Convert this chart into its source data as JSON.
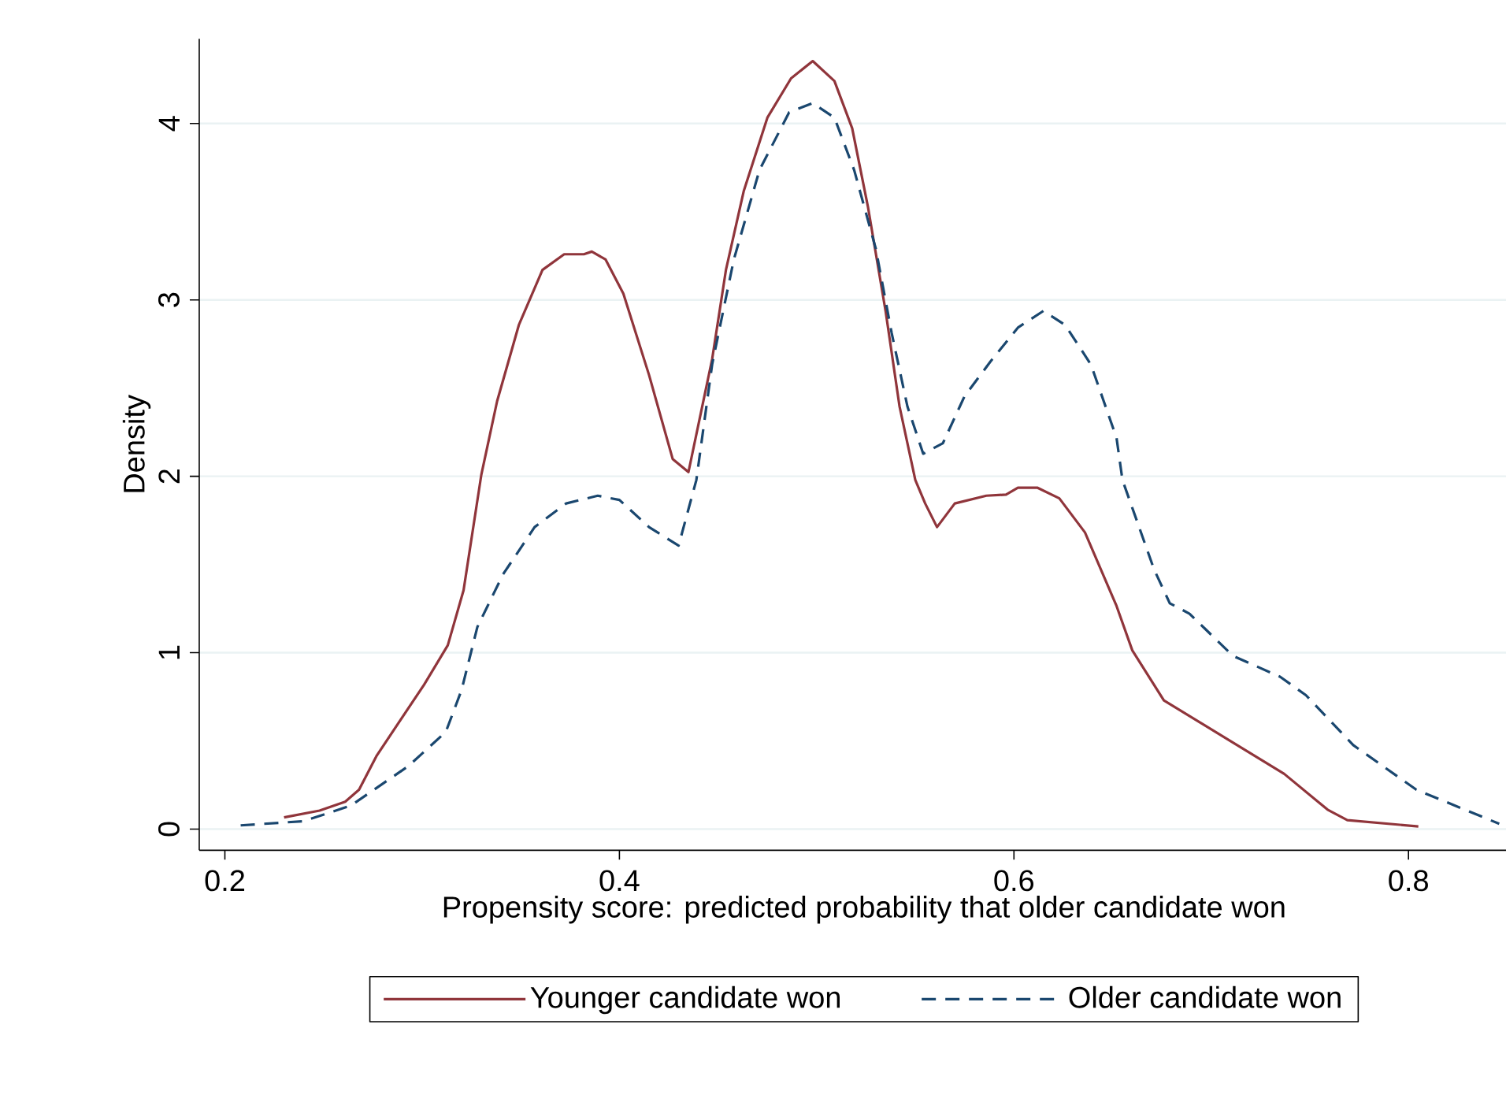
{
  "chart_data": {
    "type": "line",
    "xlabel": "Propensity score: predicted probability that older candidate won",
    "ylabel": "Density",
    "xlim": [
      0.187,
      0.861
    ],
    "ylim": [
      -0.12,
      4.48
    ],
    "xticks": [
      0.2,
      0.4,
      0.6,
      0.8
    ],
    "yticks": [
      0,
      1,
      2,
      3,
      4
    ],
    "grid": "y",
    "legend": "bottom",
    "marker": "none",
    "series": [
      {
        "name": "Younger candidate won",
        "color": "#90353b",
        "line_style": "solid",
        "x": [
          0.23,
          0.248,
          0.261,
          0.268,
          0.277,
          0.301,
          0.313,
          0.321,
          0.33,
          0.338,
          0.349,
          0.361,
          0.372,
          0.382,
          0.386,
          0.393,
          0.402,
          0.415,
          0.427,
          0.435,
          0.447,
          0.454,
          0.463,
          0.475,
          0.487,
          0.498,
          0.509,
          0.518,
          0.526,
          0.535,
          0.542,
          0.55,
          0.555,
          0.561,
          0.57,
          0.586,
          0.596,
          0.602,
          0.612,
          0.623,
          0.636,
          0.652,
          0.66,
          0.676,
          0.711,
          0.737,
          0.759,
          0.769,
          0.805
        ],
        "values": [
          0.066,
          0.105,
          0.155,
          0.223,
          0.417,
          0.819,
          1.042,
          1.354,
          2.009,
          2.426,
          2.857,
          3.17,
          3.259,
          3.259,
          3.274,
          3.229,
          3.036,
          2.575,
          2.098,
          2.024,
          2.664,
          3.17,
          3.616,
          4.033,
          4.256,
          4.354,
          4.241,
          3.973,
          3.527,
          2.932,
          2.396,
          1.979,
          1.846,
          1.712,
          1.846,
          1.89,
          1.896,
          1.935,
          1.935,
          1.875,
          1.682,
          1.265,
          1.013,
          0.729,
          0.491,
          0.313,
          0.11,
          0.051,
          0.015
        ]
      },
      {
        "name": "Older candidate won",
        "color": "#1a476f",
        "line_style": "dashed",
        "x": [
          0.208,
          0.24,
          0.264,
          0.293,
          0.312,
          0.32,
          0.328,
          0.341,
          0.357,
          0.373,
          0.389,
          0.4,
          0.415,
          0.43,
          0.439,
          0.447,
          0.458,
          0.471,
          0.486,
          0.498,
          0.509,
          0.519,
          0.53,
          0.538,
          0.546,
          0.554,
          0.564,
          0.575,
          0.588,
          0.602,
          0.615,
          0.626,
          0.639,
          0.652,
          0.655,
          0.671,
          0.679,
          0.689,
          0.711,
          0.735,
          0.748,
          0.772,
          0.804,
          0.846
        ],
        "values": [
          0.021,
          0.045,
          0.134,
          0.357,
          0.551,
          0.789,
          1.146,
          1.444,
          1.712,
          1.846,
          1.89,
          1.866,
          1.712,
          1.607,
          1.979,
          2.634,
          3.229,
          3.736,
          4.063,
          4.116,
          4.033,
          3.736,
          3.289,
          2.813,
          2.396,
          2.128,
          2.188,
          2.455,
          2.649,
          2.843,
          2.938,
          2.857,
          2.634,
          2.218,
          1.979,
          1.473,
          1.28,
          1.221,
          0.982,
          0.863,
          0.759,
          0.476,
          0.223,
          0.03
        ]
      }
    ]
  }
}
